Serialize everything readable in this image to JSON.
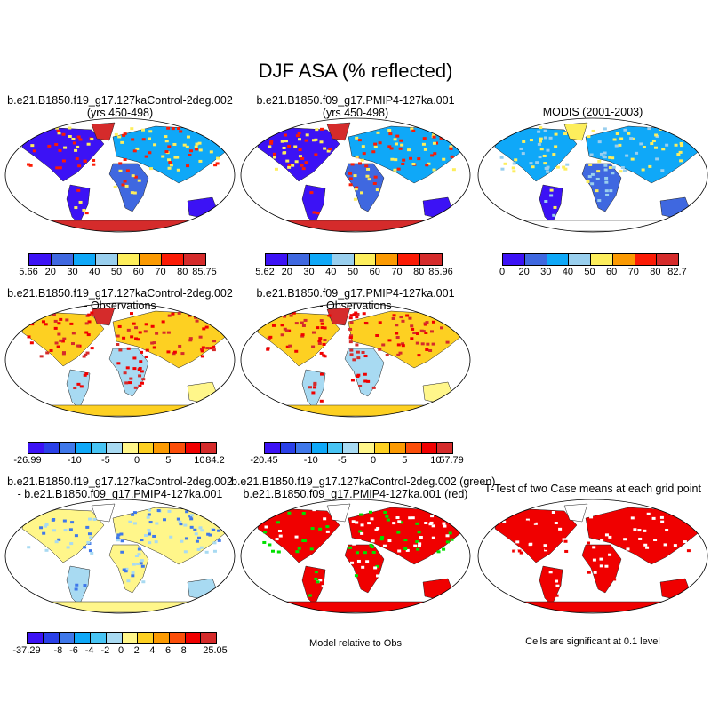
{
  "title": "DJF ASA (% reflected)",
  "panels": [
    {
      "id": "p1",
      "title1": "b.e21.B1850.f19_g17.127kaControl-2deg.002",
      "title2": "(yrs 450-498)"
    },
    {
      "id": "p2",
      "title1": "b.e21.B1850.f09_g17.PMIP4-127ka.001",
      "title2": "(yrs 450-498)"
    },
    {
      "id": "p3",
      "title1": "MODIS (2001-2003)",
      "title2": ""
    },
    {
      "id": "p4",
      "title1": "b.e21.B1850.f19_g17.127kaControl-2deg.002",
      "title2": "- Observations"
    },
    {
      "id": "p5",
      "title1": "b.e21.B1850.f09_g17.PMIP4-127ka.001",
      "title2": "- Observations"
    },
    {
      "id": "p7",
      "title1": "b.e21.B1850.f19_g17.127kaControl-2deg.002",
      "title2": "- b.e21.B1850.f09_g17.PMIP4-127ka.001"
    },
    {
      "id": "p8",
      "title1": "b.e21.B1850.f19_g17.127kaControl-2deg.002 (green)",
      "title2": "b.e21.B1850.f09_g17.PMIP4-127ka.001 (red)"
    },
    {
      "id": "p9",
      "title1": "T-Test of two Case means at each grid point",
      "title2": ""
    }
  ],
  "colorbars": {
    "cb1": {
      "labels": [
        "5.66",
        "20",
        "30",
        "40",
        "50",
        "60",
        "70",
        "80",
        "85.75"
      ],
      "colors": [
        "#3c12f5",
        "#3f68e0",
        "#0fa8f8",
        "#99cfee",
        "#fdee5c",
        "#fb9a02",
        "#fb1b05",
        "#d52b2b"
      ]
    },
    "cb2": {
      "labels": [
        "5.62",
        "20",
        "30",
        "40",
        "50",
        "60",
        "70",
        "80",
        "85.96"
      ],
      "colors": [
        "#3c12f5",
        "#3f68e0",
        "#0fa8f8",
        "#99cfee",
        "#fdee5c",
        "#fb9a02",
        "#fb1b05",
        "#d52b2b"
      ]
    },
    "cb3": {
      "labels": [
        "0",
        "20",
        "30",
        "40",
        "50",
        "60",
        "70",
        "80",
        "82.7"
      ],
      "colors": [
        "#3c12f5",
        "#3f68e0",
        "#0fa8f8",
        "#99cfee",
        "#fdee5c",
        "#fb9a02",
        "#fb1b05",
        "#d52b2b"
      ]
    },
    "cb4": {
      "labels": [
        "-26.99",
        "-10",
        "-5",
        "0",
        "5",
        "10",
        "84.2"
      ],
      "colors": [
        "#3c12f5",
        "#2a40e8",
        "#3f78ea",
        "#0fa8f8",
        "#48c4f4",
        "#a8daf2",
        "#fff68a",
        "#fdd022",
        "#fb9a02",
        "#fb4e0a",
        "#f00000",
        "#d52b2b"
      ]
    },
    "cb5": {
      "labels": [
        "-20.45",
        "-10",
        "-5",
        "0",
        "5",
        "10",
        "57.79"
      ],
      "colors": [
        "#3c12f5",
        "#2a40e8",
        "#3f78ea",
        "#0fa8f8",
        "#48c4f4",
        "#a8daf2",
        "#fff68a",
        "#fdd022",
        "#fb9a02",
        "#fb4e0a",
        "#f00000",
        "#d52b2b"
      ]
    },
    "cb7": {
      "labels": [
        "-37.29",
        "-8",
        "-6",
        "-4",
        "-2",
        "0",
        "2",
        "4",
        "6",
        "8",
        "25.05"
      ],
      "colors": [
        "#3c12f5",
        "#2a40e8",
        "#3f78ea",
        "#0fa8f8",
        "#48c4f4",
        "#a8daf2",
        "#fff68a",
        "#fdd022",
        "#fb9a02",
        "#fb4e0a",
        "#f00000",
        "#d52b2b"
      ]
    }
  },
  "notes": {
    "p8": "Model relative to Obs",
    "p9": "Cells are significant at 0.1 level"
  }
}
